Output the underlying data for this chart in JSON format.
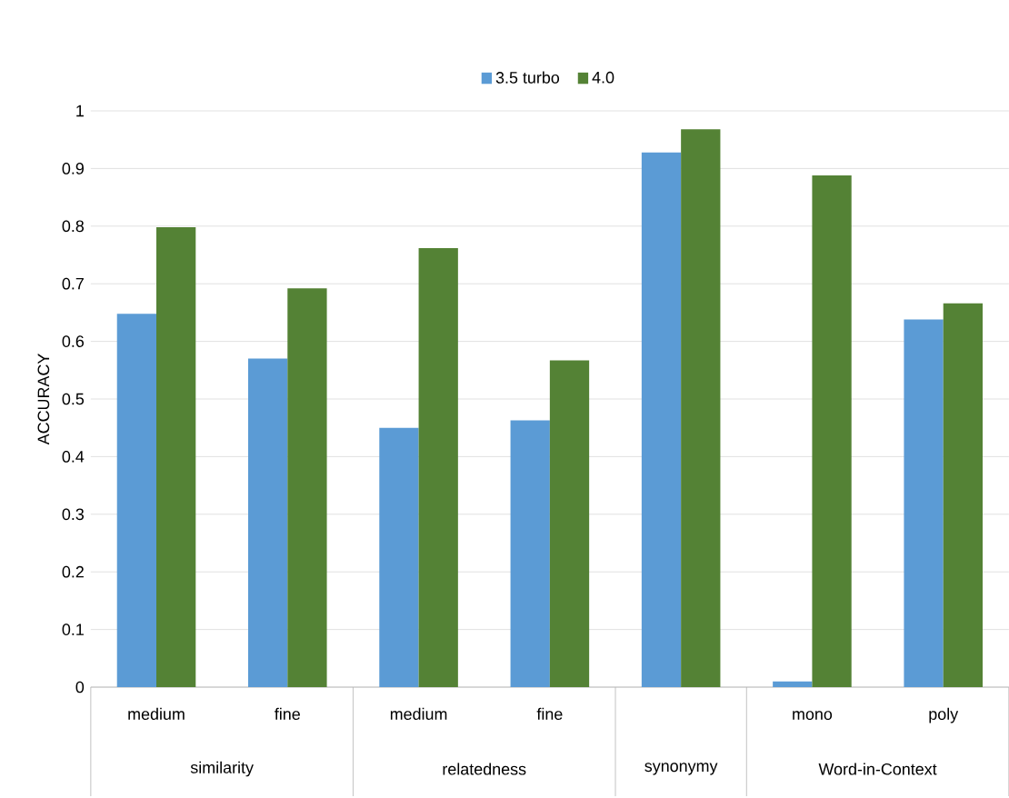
{
  "chart_data": {
    "type": "bar",
    "ylabel": "ACCURACY",
    "categories": [
      "medium",
      "fine",
      "medium",
      "fine",
      null,
      "mono",
      "poly"
    ],
    "series": [
      {
        "name": "3.5 turbo",
        "color": "#5b9bd5",
        "values": [
          0.648,
          0.57,
          0.45,
          0.463,
          0.928,
          0.01,
          0.638
        ]
      },
      {
        "name": "4.0",
        "color": "#548235",
        "values": [
          0.798,
          0.692,
          0.762,
          0.567,
          0.968,
          0.888,
          0.666
        ]
      }
    ],
    "ylim": [
      0,
      1
    ],
    "yticks": [
      0,
      0.1,
      0.2,
      0.3,
      0.4,
      0.5,
      0.6,
      0.7,
      0.8,
      0.9,
      1
    ],
    "annotations": [
      "similarity",
      "relatedness",
      "synonymy",
      "Word-in-Context"
    ],
    "grid": "y",
    "legend": "top"
  }
}
